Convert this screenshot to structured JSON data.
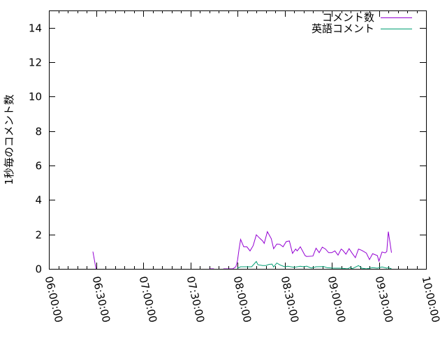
{
  "chart_data": {
    "type": "line",
    "title": "",
    "xlabel": "",
    "ylabel": "1秒毎のコメント数",
    "xlim": [
      "06:00:00",
      "10:00:00"
    ],
    "ylim": [
      0,
      15
    ],
    "x_ticks": [
      "06:00:00",
      "06:30:00",
      "07:00:00",
      "07:30:00",
      "08:00:00",
      "08:30:00",
      "09:00:00",
      "09:30:00",
      "10:00:00"
    ],
    "y_ticks": [
      0,
      2,
      4,
      6,
      8,
      10,
      12,
      14
    ],
    "grid": false,
    "legend_position": "top-right",
    "series": [
      {
        "name": "コメント数",
        "color": "#9400d3",
        "points": [
          [
            "06:28:00",
            1.0
          ],
          [
            "06:30:00",
            0
          ],
          null,
          [
            "07:42:00",
            0
          ],
          [
            "07:45:00",
            0
          ],
          null,
          [
            "07:51:00",
            0
          ],
          [
            "07:57:00",
            0
          ],
          [
            "07:59:00",
            0.13
          ],
          [
            "08:00:00",
            0.47
          ],
          [
            "08:01:00",
            1.15
          ],
          [
            "08:02:00",
            1.71
          ],
          [
            "08:04:00",
            1.28
          ],
          [
            "08:06:00",
            1.28
          ],
          [
            "08:08:00",
            1.04
          ],
          [
            "08:10:00",
            1.35
          ],
          [
            "08:12:00",
            1.98
          ],
          [
            "08:14:00",
            1.79
          ],
          [
            "08:16:00",
            1.62
          ],
          [
            "08:17:00",
            1.48
          ],
          [
            "08:19:00",
            2.16
          ],
          [
            "08:21:30",
            1.75
          ],
          [
            "08:23:00",
            1.17
          ],
          [
            "08:25:00",
            1.44
          ],
          [
            "08:27:00",
            1.42
          ],
          [
            "08:29:00",
            1.28
          ],
          [
            "08:31:00",
            1.58
          ],
          [
            "08:33:00",
            1.62
          ],
          [
            "08:35:00",
            0.9
          ],
          [
            "08:37:00",
            1.15
          ],
          [
            "08:38:00",
            1.04
          ],
          [
            "08:40:00",
            1.28
          ],
          [
            "08:43:00",
            0.77
          ],
          [
            "08:44:00",
            0.72
          ],
          [
            "08:48:00",
            0.74
          ],
          [
            "08:50:00",
            1.2
          ],
          [
            "08:52:00",
            0.94
          ],
          [
            "08:54:00",
            1.26
          ],
          [
            "08:56:00",
            1.15
          ],
          [
            "08:58:00",
            0.94
          ],
          [
            "09:00:00",
            0.94
          ],
          [
            "09:02:00",
            1.04
          ],
          [
            "09:04:00",
            0.8
          ],
          [
            "09:06:00",
            1.15
          ],
          [
            "09:07:00",
            1.08
          ],
          [
            "09:09:00",
            0.85
          ],
          [
            "09:11:00",
            1.17
          ],
          [
            "09:13:00",
            0.9
          ],
          [
            "09:15:00",
            0.65
          ],
          [
            "09:17:00",
            1.15
          ],
          [
            "09:19:00",
            1.08
          ],
          [
            "09:22:00",
            0.92
          ],
          [
            "09:24:00",
            0.54
          ],
          [
            "09:26:00",
            0.88
          ],
          [
            "09:29:00",
            0.77
          ],
          [
            "09:30:00",
            0.45
          ],
          [
            "09:32:00",
            0.98
          ],
          [
            "09:34:00",
            0.93
          ],
          [
            "09:35:00",
            1.01
          ],
          [
            "09:36:00",
            2.16
          ],
          [
            "09:37:00",
            1.55
          ],
          [
            "09:38:00",
            0.94
          ]
        ]
      },
      {
        "name": "英語コメント",
        "color": "#009e73",
        "points": [
          [
            "08:00:00",
            0.04
          ],
          [
            "08:02:00",
            0.12
          ],
          [
            "08:05:00",
            0.12
          ],
          [
            "08:09:00",
            0.12
          ],
          [
            "08:12:00",
            0.43
          ],
          [
            "08:13:00",
            0.24
          ],
          [
            "08:16:00",
            0.19
          ],
          [
            "08:18:00",
            0.19
          ],
          [
            "08:20:00",
            0.26
          ],
          [
            "08:22:00",
            0.28
          ],
          [
            "08:23:00",
            0.11
          ],
          [
            "08:25:00",
            0.34
          ],
          [
            "08:27:00",
            0.23
          ],
          [
            "08:30:00",
            0.12
          ],
          [
            "08:32:00",
            0.15
          ],
          [
            "08:36:00",
            0.09
          ],
          [
            "08:40:00",
            0.15
          ],
          [
            "08:42:00",
            0.12
          ],
          [
            "08:44:00",
            0.16
          ],
          [
            "08:47:00",
            0.05
          ],
          [
            "08:50:00",
            0.12
          ],
          [
            "08:55:00",
            0.13
          ],
          [
            "08:57:00",
            0.07
          ],
          [
            "09:01:00",
            0.04
          ],
          [
            "09:06:00",
            0.04
          ],
          [
            "09:10:00",
            0
          ],
          [
            "09:12:00",
            0.09
          ],
          [
            "09:13:00",
            0.01
          ],
          [
            "09:17:00",
            0.19
          ],
          [
            "09:19:00",
            0.04
          ],
          [
            "09:22:00",
            0
          ],
          [
            "09:26:00",
            0.07
          ],
          [
            "09:29:00",
            0.04
          ],
          [
            "09:32:00",
            0.11
          ],
          [
            "09:35:00",
            0.04
          ],
          [
            "09:36:00",
            0.07
          ],
          [
            "09:38:00",
            0
          ]
        ]
      }
    ]
  }
}
